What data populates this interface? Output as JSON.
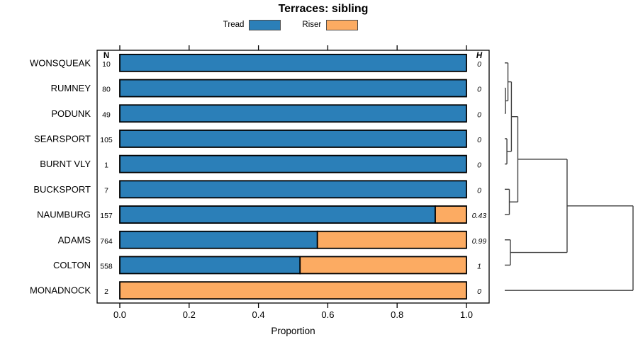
{
  "header": {
    "title": "Terraces: sibling"
  },
  "chart_data": {
    "type": "bar",
    "orientation": "horizontal",
    "stacked": true,
    "title": "Terraces: sibling",
    "xlabel": "Proportion",
    "x_ticks": [
      "0.0",
      "0.2",
      "0.4",
      "0.6",
      "0.8",
      "1.0"
    ],
    "xlim": [
      0,
      1
    ],
    "legend_position": "top",
    "grid": false,
    "categories": [
      "WONSQUEAK",
      "RUMNEY",
      "PODUNK",
      "SEARSPORT",
      "BURNT VLY",
      "BUCKSPORT",
      "NAUMBURG",
      "ADAMS",
      "COLTON",
      "MONADNOCK"
    ],
    "series": [
      {
        "name": "Tread",
        "color": "#2b7fb8",
        "values": [
          1,
          1,
          1,
          1,
          1,
          1,
          0.91,
          0.57,
          0.52,
          0
        ]
      },
      {
        "name": "Riser",
        "color": "#fcab62",
        "values": [
          0,
          0,
          0,
          0,
          0,
          0,
          0.09,
          0.43,
          0.48,
          1
        ]
      }
    ],
    "col_headers": {
      "n": "N",
      "h": "H"
    },
    "n_values": [
      10,
      80,
      49,
      105,
      1,
      7,
      157,
      764,
      558,
      2
    ],
    "h_values": [
      "0",
      "0",
      "0",
      "0",
      "0",
      "0",
      "0.43",
      "0.99",
      "1",
      "0"
    ],
    "dendrogram": {
      "merges": [
        {
          "id": "m1",
          "children": [
            "RUMNEY",
            "PODUNK"
          ],
          "height": 0.006
        },
        {
          "id": "m2",
          "children": [
            "WONSQUEAK",
            "m1"
          ],
          "height": 0.025
        },
        {
          "id": "m3",
          "children": [
            "SEARSPORT",
            "BURNT VLY"
          ],
          "height": 0.017
        },
        {
          "id": "m4",
          "children": [
            "m2",
            "m3"
          ],
          "height": 0.052
        },
        {
          "id": "m5",
          "children": [
            "BUCKSPORT",
            "NAUMBURG"
          ],
          "height": 0.036
        },
        {
          "id": "m6",
          "children": [
            "m4",
            "m5"
          ],
          "height": 0.102
        },
        {
          "id": "m7",
          "children": [
            "ADAMS",
            "COLTON"
          ],
          "height": 0.044
        },
        {
          "id": "m8",
          "children": [
            "m6",
            "m7"
          ],
          "height": 0.486
        },
        {
          "id": "m9",
          "children": [
            "m8",
            "MONADNOCK"
          ],
          "height": 1.0
        }
      ]
    },
    "colors": {
      "bar_border": "#000000",
      "dendrogram_line": "#3f3f3f",
      "axis": "#000000",
      "legend_swatch_border": "#4d4d4d"
    }
  }
}
